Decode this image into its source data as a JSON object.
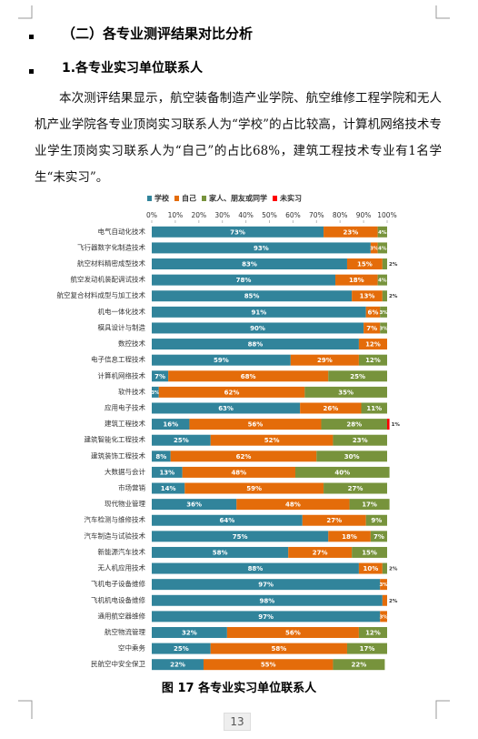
{
  "header": {
    "title": "（二）各专业测评结果对比分析",
    "subtitle": "1.各专业实习单位联系人"
  },
  "body": {
    "paragraph": "本次测评结果显示，航空装备制造产业学院、航空维修工程学院和无人机产业学院各专业顶岗实习联系人为“学校”的占比较高，计算机网络技术专业学生顶岗实习联系人为“自己”的占比68%，建筑工程技术专业有1名学生“未实习”。"
  },
  "figure": {
    "caption": "图 17  各专业实习单位联系人"
  },
  "footer": {
    "page_number": "13"
  },
  "chart_data": {
    "type": "stacked_bar_horizontal",
    "categories": [
      "电气自动化技术",
      "飞行器数字化制造技术",
      "航空材料精密成型技术",
      "航空发动机装配调试技术",
      "航空复合材料成型与加工技术",
      "机电一体化技术",
      "模具设计与制造",
      "数控技术",
      "电子信息工程技术",
      "计算机网络技术",
      "软件技术",
      "应用电子技术",
      "建筑工程技术",
      "建筑智能化工程技术",
      "建筑装饰工程技术",
      "大数据与会计",
      "市场营销",
      "现代物业管理",
      "汽车检测与维修技术",
      "汽车制造与试验技术",
      "新能源汽车技术",
      "无人机应用技术",
      "飞机电子设备维修",
      "飞机机电设备维修",
      "通用航空器维修",
      "航空物流管理",
      "空中乘务",
      "民航空中安全保卫"
    ],
    "series": [
      {
        "name": "学校",
        "color": "#31849b",
        "values": [
          73,
          93,
          83,
          78,
          85,
          91,
          90,
          88,
          59,
          7,
          3,
          63,
          16,
          25,
          8,
          13,
          14,
          36,
          64,
          75,
          58,
          88,
          97,
          98,
          97,
          32,
          25,
          22
        ],
        "value_labels": [
          "73%",
          "93%",
          "83%",
          "78%",
          "85%",
          "91%",
          "90%",
          "88%",
          "59%",
          "7%",
          "3%",
          "63%",
          "16%",
          "25%",
          "8%",
          "13%",
          "14%",
          "36%",
          "64%",
          "75%",
          "58%",
          "88%",
          "97%",
          "98%",
          "97%",
          "32%",
          "25%",
          "22%"
        ]
      },
      {
        "name": "自己",
        "color": "#e46c0a",
        "values": [
          23,
          3,
          15,
          18,
          13,
          6,
          7,
          12,
          29,
          68,
          62,
          26,
          56,
          52,
          62,
          48,
          59,
          48,
          27,
          18,
          27,
          10,
          3,
          2,
          3,
          56,
          58,
          55
        ],
        "value_labels": [
          "23%",
          "3%",
          "15%",
          "18%",
          "13%",
          "6%",
          "7%",
          "12%",
          "29%",
          "68%",
          "62%",
          "26%",
          "56%",
          "52%",
          "62%",
          "48%",
          "59%",
          "48%",
          "27%",
          "18%",
          "27%",
          "10%",
          "3%",
          "2%",
          "3%",
          "56%",
          "58%",
          "55%"
        ]
      },
      {
        "name": "家人、朋友或同学",
        "color": "#77933c",
        "values": [
          4,
          4,
          2,
          4,
          2,
          3,
          3,
          null,
          12,
          25,
          35,
          11,
          28,
          23,
          30,
          40,
          27,
          17,
          9,
          7,
          15,
          2,
          null,
          null,
          null,
          12,
          17,
          22
        ],
        "value_labels": [
          "4%",
          "4%",
          "2%",
          "4%",
          "2%",
          "3%",
          "3%",
          null,
          "12%",
          "25%",
          "35%",
          "11%",
          "28%",
          "23%",
          "30%",
          "40%",
          "27%",
          "17%",
          "9%",
          "7%",
          "15%",
          "2%",
          null,
          null,
          null,
          "12%",
          "17%",
          "22%"
        ]
      },
      {
        "name": "未实习",
        "color": "#ff0000",
        "values": [
          null,
          null,
          null,
          null,
          null,
          null,
          null,
          null,
          null,
          null,
          null,
          null,
          1,
          null,
          null,
          null,
          null,
          null,
          null,
          null,
          null,
          null,
          null,
          null,
          null,
          null,
          null,
          null
        ],
        "value_labels": [
          null,
          null,
          null,
          null,
          null,
          null,
          null,
          null,
          null,
          null,
          null,
          null,
          "1%",
          null,
          null,
          null,
          null,
          null,
          null,
          null,
          null,
          null,
          null,
          null,
          null,
          null,
          null,
          null
        ]
      }
    ],
    "xlim": [
      0,
      100
    ],
    "xticks": [
      {
        "value": 0,
        "label": "0%"
      },
      {
        "value": 10,
        "label": "10%"
      },
      {
        "value": 20,
        "label": "20%"
      },
      {
        "value": 30,
        "label": "30%"
      },
      {
        "value": 40,
        "label": "40%"
      },
      {
        "value": 50,
        "label": "50%"
      },
      {
        "value": 60,
        "label": "60%"
      },
      {
        "value": 70,
        "label": "70%"
      },
      {
        "value": 80,
        "label": "80%"
      },
      {
        "value": 90,
        "label": "90%"
      },
      {
        "value": 100,
        "label": "100%"
      }
    ],
    "legend": "top"
  }
}
